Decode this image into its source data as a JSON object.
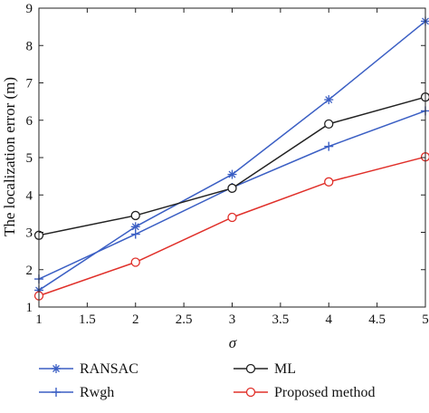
{
  "chart_data": {
    "type": "line",
    "xlabel": "σ",
    "ylabel": "The localization error (m)",
    "x": [
      1,
      2,
      3,
      4,
      5
    ],
    "xlim": [
      1,
      5
    ],
    "ylim": [
      1,
      9
    ],
    "xticks": [
      1,
      1.5,
      2,
      2.5,
      3,
      3.5,
      4,
      4.5,
      5
    ],
    "xtick_labels": [
      "1",
      "1.5",
      "2",
      "2.5",
      "3",
      "3.5",
      "4",
      "4.5",
      "5"
    ],
    "yticks": [
      1,
      2,
      3,
      4,
      5,
      6,
      7,
      8,
      9
    ],
    "ytick_labels": [
      "1",
      "2",
      "3",
      "4",
      "5",
      "6",
      "7",
      "8",
      "9"
    ],
    "grid": false,
    "legend_position": "bottom, outside plot, two columns",
    "series": [
      {
        "name": "RANSAC",
        "values": [
          1.45,
          3.15,
          4.55,
          6.55,
          8.65
        ],
        "color": "#3b5fc4",
        "marker": "star"
      },
      {
        "name": "Rwgh",
        "values": [
          1.75,
          2.95,
          4.2,
          5.3,
          6.25
        ],
        "color": "#3b5fc4",
        "marker": "plus"
      },
      {
        "name": "ML",
        "values": [
          2.92,
          3.45,
          4.18,
          5.9,
          6.62
        ],
        "color": "#222222",
        "marker": "circle"
      },
      {
        "name": "Proposed method",
        "values": [
          1.3,
          2.2,
          3.4,
          4.35,
          5.02
        ],
        "color": "#e0302a",
        "marker": "circle"
      }
    ]
  }
}
